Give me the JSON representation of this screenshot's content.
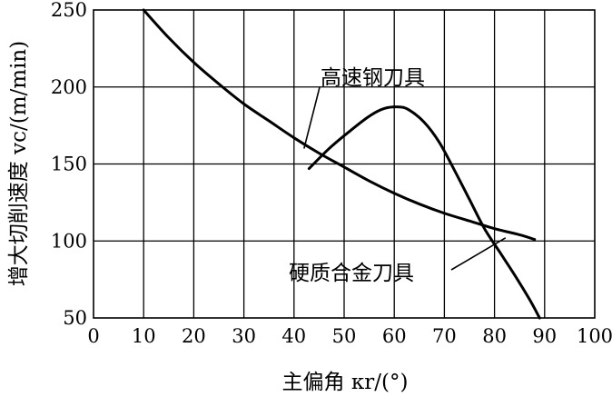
{
  "chart_data": {
    "type": "line",
    "xlabel": "主偏角 κr/(°)",
    "ylabel": "增大切削速度 vc/(m/min)",
    "xlim": [
      0,
      100
    ],
    "ylim": [
      50,
      250
    ],
    "x_ticks": [
      0,
      10,
      20,
      30,
      40,
      50,
      60,
      70,
      80,
      90,
      100
    ],
    "y_ticks": [
      50,
      100,
      150,
      200,
      250
    ],
    "grid": true,
    "series": [
      {
        "name": "高速钢刀具",
        "x": [
          10,
          15,
          20,
          25,
          30,
          35,
          40,
          45,
          50,
          55,
          60,
          65,
          70,
          75,
          80,
          85,
          88
        ],
        "values": [
          250,
          232,
          216,
          202,
          189,
          178,
          167,
          157,
          148,
          139,
          131,
          124,
          118,
          113,
          108,
          104,
          101
        ]
      },
      {
        "name": "硬质合金刀具",
        "x": [
          43,
          47,
          51,
          55,
          58,
          61,
          63,
          66,
          69,
          72,
          75,
          78,
          81,
          84,
          87,
          89
        ],
        "values": [
          147,
          160,
          171,
          181,
          186,
          187,
          185,
          177,
          164,
          146,
          127,
          108,
          93,
          78,
          62,
          50
        ]
      }
    ],
    "annotations": [
      {
        "text": "高速钢刀具",
        "points_to": "高速钢刀具"
      },
      {
        "text": "硬质合金刀具",
        "points_to": "硬质合金刀具"
      }
    ]
  }
}
